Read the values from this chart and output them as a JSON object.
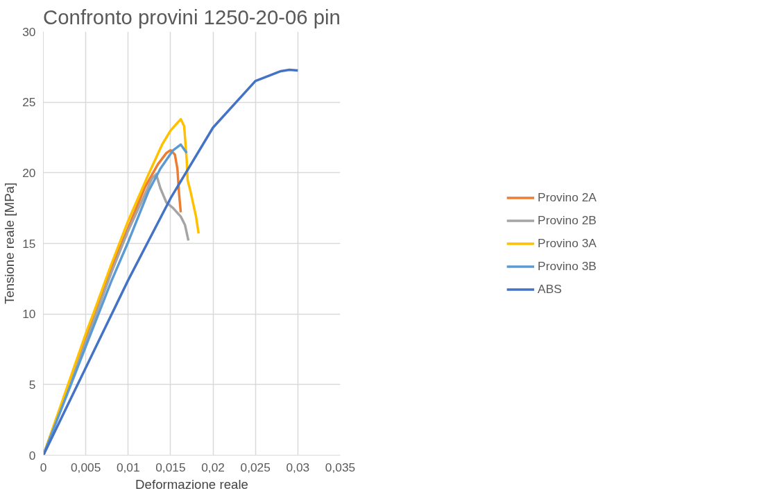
{
  "chart_data": {
    "type": "line",
    "title": "Confronto provini 1250-20-06 pin",
    "xlabel": "Deformazione reale",
    "ylabel": "Tensione reale [MPa]",
    "xlim": [
      0,
      0.035
    ],
    "ylim": [
      0,
      30
    ],
    "xticks": [
      0,
      {
        "value": 0.005,
        "label": "0,005"
      },
      {
        "value": 0.01,
        "label": "0,01"
      },
      {
        "value": 0.015,
        "label": "0,015"
      },
      {
        "value": 0.02,
        "label": "0,02"
      },
      {
        "value": 0.025,
        "label": "0,025"
      },
      {
        "value": 0.03,
        "label": "0,03"
      },
      {
        "value": 0.035,
        "label": "0,035"
      }
    ],
    "yticks": [
      0,
      5,
      10,
      15,
      20,
      25,
      30
    ],
    "grid": true,
    "legend": "right",
    "marker": "none",
    "line_style": "solid",
    "series": [
      {
        "name": "Provino 2A",
        "color": "#ed7d31",
        "x": [
          0,
          0.005,
          0.008,
          0.01,
          0.012,
          0.0135,
          0.0145,
          0.015,
          0.0155,
          0.0158,
          0.016,
          0.0162
        ],
        "values": [
          0,
          8.3,
          13.2,
          16.1,
          19.0,
          20.6,
          21.4,
          21.6,
          21.3,
          20.3,
          18.5,
          17.2
        ]
      },
      {
        "name": "Provino 2B",
        "color": "#a5a5a5",
        "x": [
          0,
          0.005,
          0.008,
          0.01,
          0.012,
          0.0128,
          0.0133,
          0.0138,
          0.0145,
          0.0153,
          0.0162,
          0.0167,
          0.0171
        ],
        "values": [
          0,
          8.0,
          12.9,
          15.9,
          18.5,
          19.6,
          19.9,
          18.9,
          17.9,
          17.5,
          16.9,
          16.3,
          15.2
        ]
      },
      {
        "name": "Provino 3A",
        "color": "#ffc000",
        "x": [
          0,
          0.005,
          0.006,
          0.008,
          0.01,
          0.0124,
          0.014,
          0.015,
          0.0162,
          0.0166,
          0.0169,
          0.017,
          0.0173,
          0.018,
          0.0183
        ],
        "values": [
          0,
          8.6,
          10.2,
          13.5,
          16.6,
          19.9,
          22.0,
          23.0,
          23.8,
          23.3,
          20.9,
          19.5,
          18.8,
          16.9,
          15.7
        ]
      },
      {
        "name": "Provino 3B",
        "color": "#5b9bd5",
        "x": [
          0,
          0.005,
          0.008,
          0.01,
          0.0124,
          0.0138,
          0.0153,
          0.0162,
          0.0169
        ],
        "values": [
          0,
          7.7,
          12.3,
          15.1,
          18.7,
          20.3,
          21.6,
          22.0,
          21.4
        ]
      },
      {
        "name": "ABS",
        "color": "#4472c4",
        "x": [
          0,
          0.005,
          0.01,
          0.015,
          0.02,
          0.025,
          0.028,
          0.029,
          0.03
        ],
        "values": [
          0,
          6.2,
          12.4,
          18.2,
          23.2,
          26.5,
          27.2,
          27.3,
          27.25
        ]
      }
    ]
  }
}
